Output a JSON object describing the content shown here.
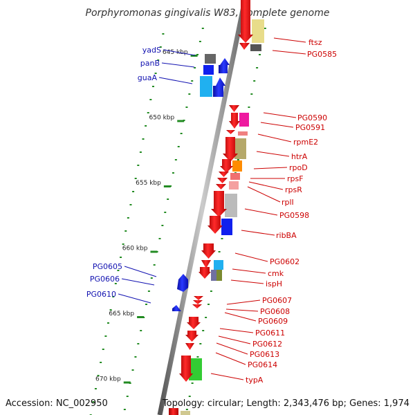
{
  "header": {
    "title": "Porphyromonas gingivalis W83, complete genome"
  },
  "footer": {
    "accession": "Accession: NC_002950",
    "summary": "Topology: circular; Length: 2,343,476 bp; Genes: 1,974"
  },
  "colors": {
    "forward": "#ee0000",
    "reverse": "#1020ee",
    "backbone": "#888888",
    "tick": "#228b22",
    "label_red": "#cc0000",
    "label_blue": "#1010b0"
  },
  "scale": {
    "marks": [
      {
        "kbp": 645,
        "label": "645 kbp"
      },
      {
        "kbp": 650,
        "label": "650 kbp"
      },
      {
        "kbp": 655,
        "label": "655 kbp"
      },
      {
        "kbp": 660,
        "label": "660 kbp"
      },
      {
        "kbp": 665,
        "label": "665 kbp"
      },
      {
        "kbp": 670,
        "label": "670 kbp"
      }
    ]
  },
  "genes_right": [
    {
      "name": "ftsz"
    },
    {
      "name": "PG0585"
    },
    {
      "name": "PG0590"
    },
    {
      "name": "PG0591"
    },
    {
      "name": "rpmE2"
    },
    {
      "name": "htrA"
    },
    {
      "name": "rpoD"
    },
    {
      "name": "rpsF"
    },
    {
      "name": "rpsR"
    },
    {
      "name": "rplI"
    },
    {
      "name": "PG0598"
    },
    {
      "name": "ribBA"
    },
    {
      "name": "PG0602"
    },
    {
      "name": "cmk"
    },
    {
      "name": "ispH"
    },
    {
      "name": "PG0607"
    },
    {
      "name": "PG0608"
    },
    {
      "name": "PG0609"
    },
    {
      "name": "PG0611"
    },
    {
      "name": "PG0612"
    },
    {
      "name": "PG0613"
    },
    {
      "name": "PG0614"
    },
    {
      "name": "typA"
    }
  ],
  "genes_left": [
    {
      "name": "yadS"
    },
    {
      "name": "panB"
    },
    {
      "name": "guaA"
    },
    {
      "name": "PG0605"
    },
    {
      "name": "PG0606"
    },
    {
      "name": "PG0610"
    }
  ]
}
